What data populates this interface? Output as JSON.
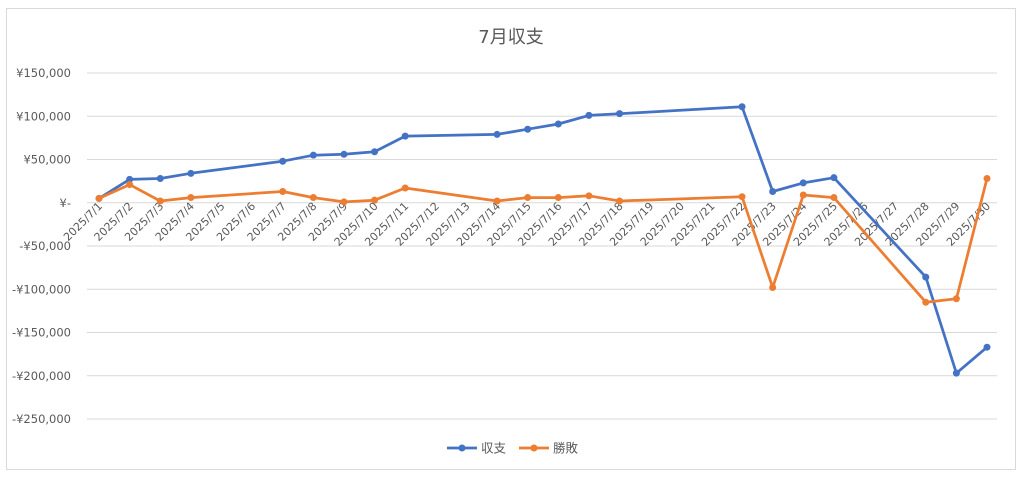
{
  "chart_data": {
    "type": "line",
    "title": "7月収支",
    "categories": [
      "2025/7/1",
      "2025/7/2",
      "2025/7/3",
      "2025/7/4",
      "2025/7/5",
      "2025/7/6",
      "2025/7/7",
      "2025/7/8",
      "2025/7/9",
      "2025/7/10",
      "2025/7/11",
      "2025/7/12",
      "2025/7/13",
      "2025/7/14",
      "2025/7/15",
      "2025/7/16",
      "2025/7/17",
      "2025/7/18",
      "2025/7/19",
      "2025/7/20",
      "2025/7/21",
      "2025/7/22",
      "2025/7/23",
      "2025/7/24",
      "2025/7/25",
      "2025/7/26",
      "2025/7/27",
      "2025/7/28",
      "2025/7/29",
      "2025/7/30"
    ],
    "ylim": [
      -250000,
      150000
    ],
    "yticks": [
      150000,
      100000,
      50000,
      0,
      -50000,
      -100000,
      -150000,
      -200000,
      -250000
    ],
    "ytick_labels": [
      "¥150,000",
      "¥100,000",
      "¥50,000",
      "¥-",
      "-¥50,000",
      "-¥100,000",
      "-¥150,000",
      "-¥200,000",
      "-¥250,000"
    ],
    "grid": true,
    "legend_position": "bottom",
    "series": [
      {
        "name": "収支",
        "color": "#4472c4",
        "values": [
          5000,
          27000,
          28000,
          34000,
          null,
          null,
          48000,
          55000,
          56000,
          59000,
          77000,
          null,
          null,
          79000,
          85000,
          91000,
          101000,
          103000,
          null,
          null,
          null,
          111000,
          13000,
          23000,
          29000,
          null,
          null,
          -86000,
          -197000,
          -167000
        ]
      },
      {
        "name": "勝敗",
        "color": "#ed7d31",
        "values": [
          5000,
          21000,
          2000,
          6000,
          null,
          null,
          13000,
          6000,
          1000,
          3000,
          17000,
          null,
          null,
          2000,
          6000,
          6000,
          8000,
          2000,
          null,
          null,
          null,
          7000,
          -98000,
          9000,
          6000,
          null,
          null,
          -115000,
          -111000,
          28000
        ]
      }
    ]
  }
}
